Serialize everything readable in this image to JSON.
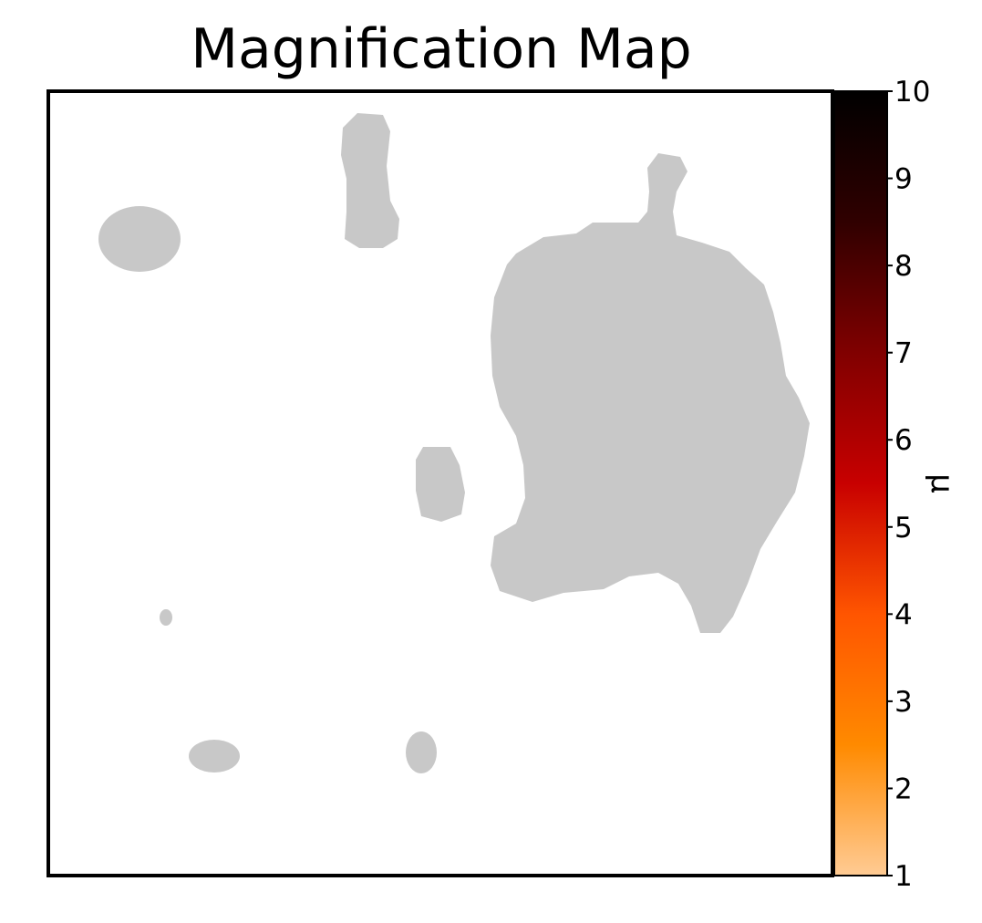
{
  "chart_data": {
    "type": "heatmap",
    "title": "Magnification Map",
    "xlabel": "",
    "ylabel": "",
    "grid": false,
    "colormap": "gist_heat_r",
    "colormap_stops": [
      "#ffcb94",
      "#ff8a00",
      "#ff5500",
      "#c80000",
      "#800000",
      "#300000",
      "#000000"
    ],
    "below_range_color": "#c8c8c8",
    "background_color": "#ffffff",
    "colorbar": {
      "label": "μ",
      "vmin": 1,
      "vmax": 10,
      "ticks": [
        "1",
        "2",
        "3",
        "4",
        "5",
        "6",
        "7",
        "8",
        "9",
        "10"
      ]
    }
  }
}
